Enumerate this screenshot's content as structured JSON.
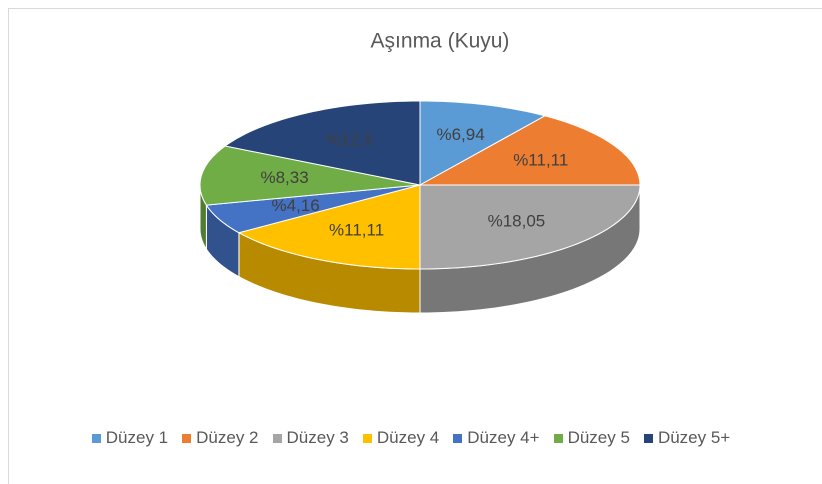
{
  "chart_data": {
    "type": "pie3d",
    "title": "Aşınma (Kuyu)",
    "categories": [
      "Düzey 1",
      "Düzey 2",
      "Düzey 3",
      "Düzey 4",
      "Düzey 4+",
      "Düzey 5",
      "Düzey 5+"
    ],
    "values": [
      6.94,
      11.11,
      18.05,
      11.11,
      4.16,
      8.33,
      12.5
    ],
    "value_labels": [
      "%6,94",
      "%11,11",
      "%18,05",
      "%11,11",
      "%4,16",
      "%8,33",
      "%12,5"
    ],
    "colors": [
      "#5b9bd5",
      "#ed7d31",
      "#a5a5a5",
      "#ffc000",
      "#4472c4",
      "#70ad47",
      "#264478"
    ],
    "legend": "bottom"
  }
}
